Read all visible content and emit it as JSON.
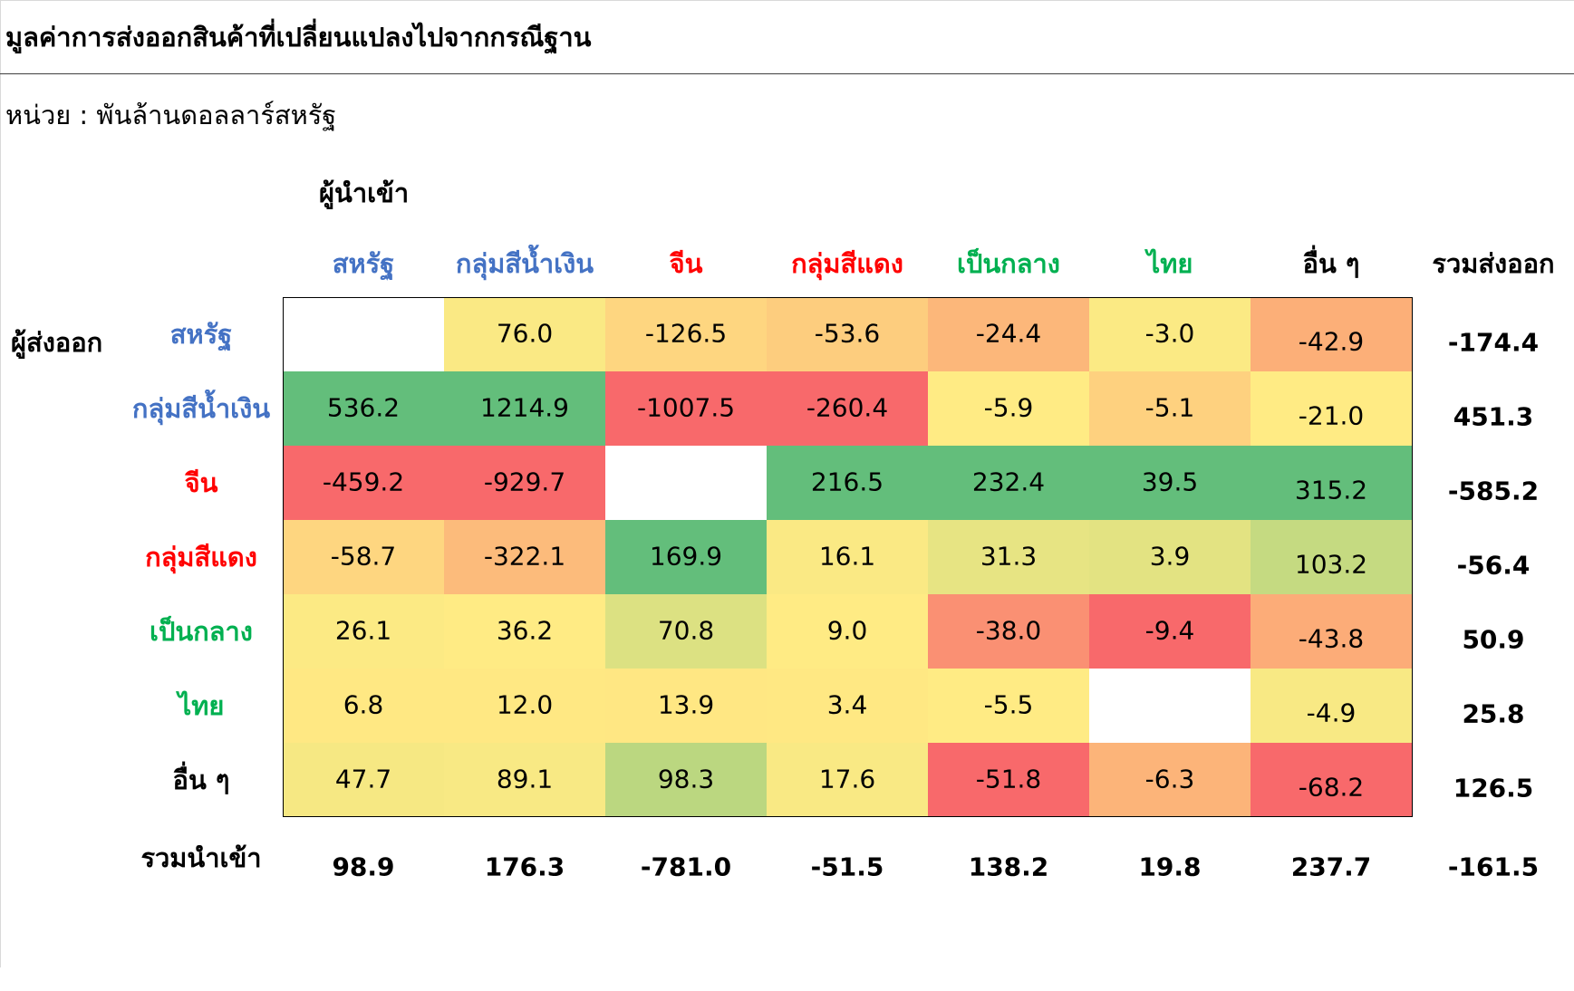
{
  "title": "มูลค่าการส่งออกสินค้าที่เปลี่ยนแปลงไปจากกรณีฐาน",
  "unit_label": "หน่วย : พันล้านดอลลาร์สหรัฐ",
  "importer_axis_title": "ผู้นำเข้า",
  "exporter_axis_title": "ผู้ส่งออก",
  "export_total_label": "รวมส่งออก",
  "import_total_label": "รวมนำเข้า",
  "label_colors": {
    "blue": "#4472c4",
    "red": "#ff0000",
    "green": "#00b050",
    "black": "#000000"
  },
  "color_scale": {
    "low": "#f8696b",
    "mid": "#ffeb84",
    "high": "#63be7b",
    "empty": "#ffffff"
  },
  "chart_data": {
    "type": "heatmap",
    "title": "มูลค่าการส่งออกสินค้าที่เปลี่ยนแปลงไปจากกรณีฐาน",
    "columns": [
      {
        "label": "สหรัฐ",
        "color_group": "blue"
      },
      {
        "label": "กลุ่มสีน้ำเงิน",
        "color_group": "blue"
      },
      {
        "label": "จีน",
        "color_group": "red"
      },
      {
        "label": "กลุ่มสีแดง",
        "color_group": "red"
      },
      {
        "label": "เป็นกลาง",
        "color_group": "green"
      },
      {
        "label": "ไทย",
        "color_group": "green"
      },
      {
        "label": "อื่น ๆ",
        "color_group": "black"
      }
    ],
    "rows": [
      {
        "label": "สหรัฐ",
        "color_group": "blue",
        "values": [
          null,
          76.0,
          -126.5,
          -53.6,
          -24.4,
          -3.0,
          -42.9
        ],
        "total": -174.4
      },
      {
        "label": "กลุ่มสีน้ำเงิน",
        "color_group": "blue",
        "values": [
          536.2,
          1214.9,
          -1007.5,
          -260.4,
          -5.9,
          -5.1,
          -21.0
        ],
        "total": 451.3
      },
      {
        "label": "จีน",
        "color_group": "red",
        "values": [
          -459.2,
          -929.7,
          null,
          216.5,
          232.4,
          39.5,
          315.2
        ],
        "total": -585.2
      },
      {
        "label": "กลุ่มสีแดง",
        "color_group": "red",
        "values": [
          -58.7,
          -322.1,
          169.9,
          16.1,
          31.3,
          3.9,
          103.2
        ],
        "total": -56.4
      },
      {
        "label": "เป็นกลาง",
        "color_group": "green",
        "values": [
          26.1,
          36.2,
          70.8,
          9.0,
          -38.0,
          -9.4,
          -43.8
        ],
        "total": 50.9
      },
      {
        "label": "ไทย",
        "color_group": "green",
        "values": [
          6.8,
          12.0,
          13.9,
          3.4,
          -5.5,
          null,
          -4.9
        ],
        "total": 25.8
      },
      {
        "label": "อื่น ๆ",
        "color_group": "black",
        "values": [
          47.7,
          89.1,
          98.3,
          17.6,
          -51.8,
          -6.3,
          -68.2
        ],
        "total": 126.5
      }
    ],
    "column_totals": [
      98.9,
      176.3,
      -781.0,
      -51.5,
      138.2,
      19.8,
      237.7
    ],
    "grand_total": -161.5,
    "color_scale_basis": "per column"
  }
}
